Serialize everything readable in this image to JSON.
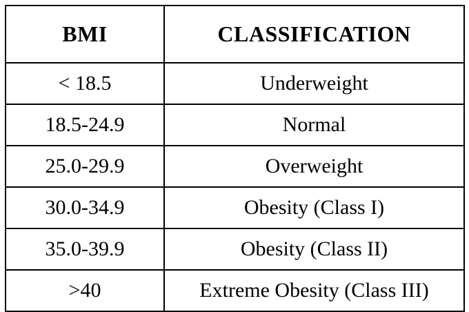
{
  "table": {
    "headers": [
      "BMI",
      "CLASSIFICATION"
    ],
    "rows": [
      {
        "bmi": "< 18.5",
        "classification": "Underweight"
      },
      {
        "bmi": "18.5-24.9",
        "classification": "Normal"
      },
      {
        "bmi": "25.0-29.9",
        "classification": "Overweight"
      },
      {
        "bmi": "30.0-34.9",
        "classification": "Obesity (Class I)"
      },
      {
        "bmi": "35.0-39.9",
        "classification": "Obesity (Class II)"
      },
      {
        "bmi": ">40",
        "classification": "Extreme Obesity (Class III)"
      }
    ]
  }
}
